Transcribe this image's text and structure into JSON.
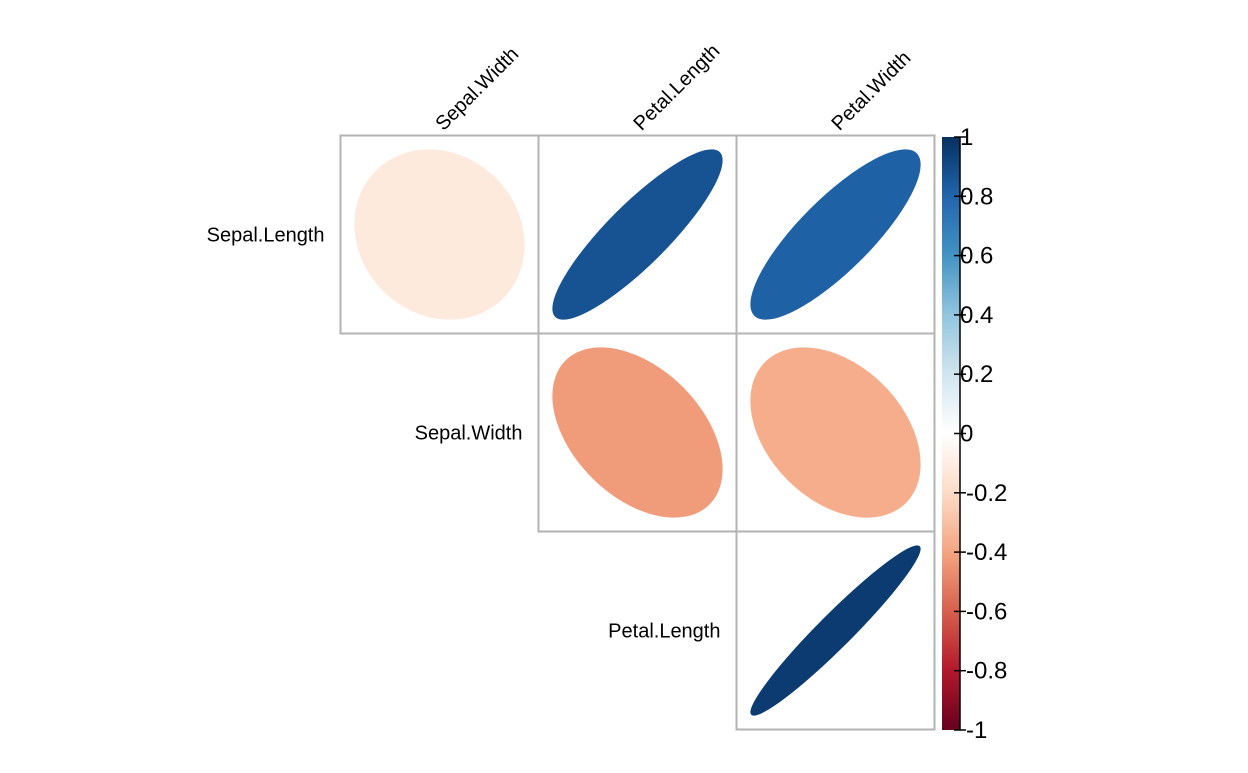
{
  "chart_data": {
    "type": "heatmap",
    "variables": [
      "Sepal.Length",
      "Sepal.Width",
      "Petal.Length",
      "Petal.Width"
    ],
    "column_labels": [
      "Sepal.Width",
      "Petal.Length",
      "Petal.Width"
    ],
    "row_labels": [
      "Sepal.Length",
      "Sepal.Width",
      "Petal.Length"
    ],
    "cells": [
      {
        "row": "Sepal.Length",
        "col": "Sepal.Width",
        "value": -0.12
      },
      {
        "row": "Sepal.Length",
        "col": "Petal.Length",
        "value": 0.87
      },
      {
        "row": "Sepal.Length",
        "col": "Petal.Width",
        "value": 0.82
      },
      {
        "row": "Sepal.Width",
        "col": "Petal.Length",
        "value": -0.43
      },
      {
        "row": "Sepal.Width",
        "col": "Petal.Width",
        "value": -0.37
      },
      {
        "row": "Petal.Length",
        "col": "Petal.Width",
        "value": 0.96
      }
    ],
    "colorbar": {
      "min": -1,
      "max": 1,
      "ticks": [
        1,
        0.8,
        0.6,
        0.4,
        0.2,
        0,
        -0.2,
        -0.4,
        -0.6,
        -0.8,
        -1
      ],
      "tick_labels": [
        "1",
        "0.8",
        "0.6",
        "0.4",
        "0.2",
        "0",
        "-0.2",
        "-0.4",
        "-0.6",
        "-0.8",
        "-1"
      ],
      "palette": [
        "#67001F",
        "#B2182B",
        "#D6604D",
        "#F4A582",
        "#FDDBC7",
        "#FFFFFF",
        "#D1E5F0",
        "#92C5DE",
        "#4393C3",
        "#2166AC",
        "#053061"
      ]
    },
    "cell_border_color": "#b3b3b3",
    "legend_position": "right",
    "triangle": "upper",
    "diagonal": false
  }
}
